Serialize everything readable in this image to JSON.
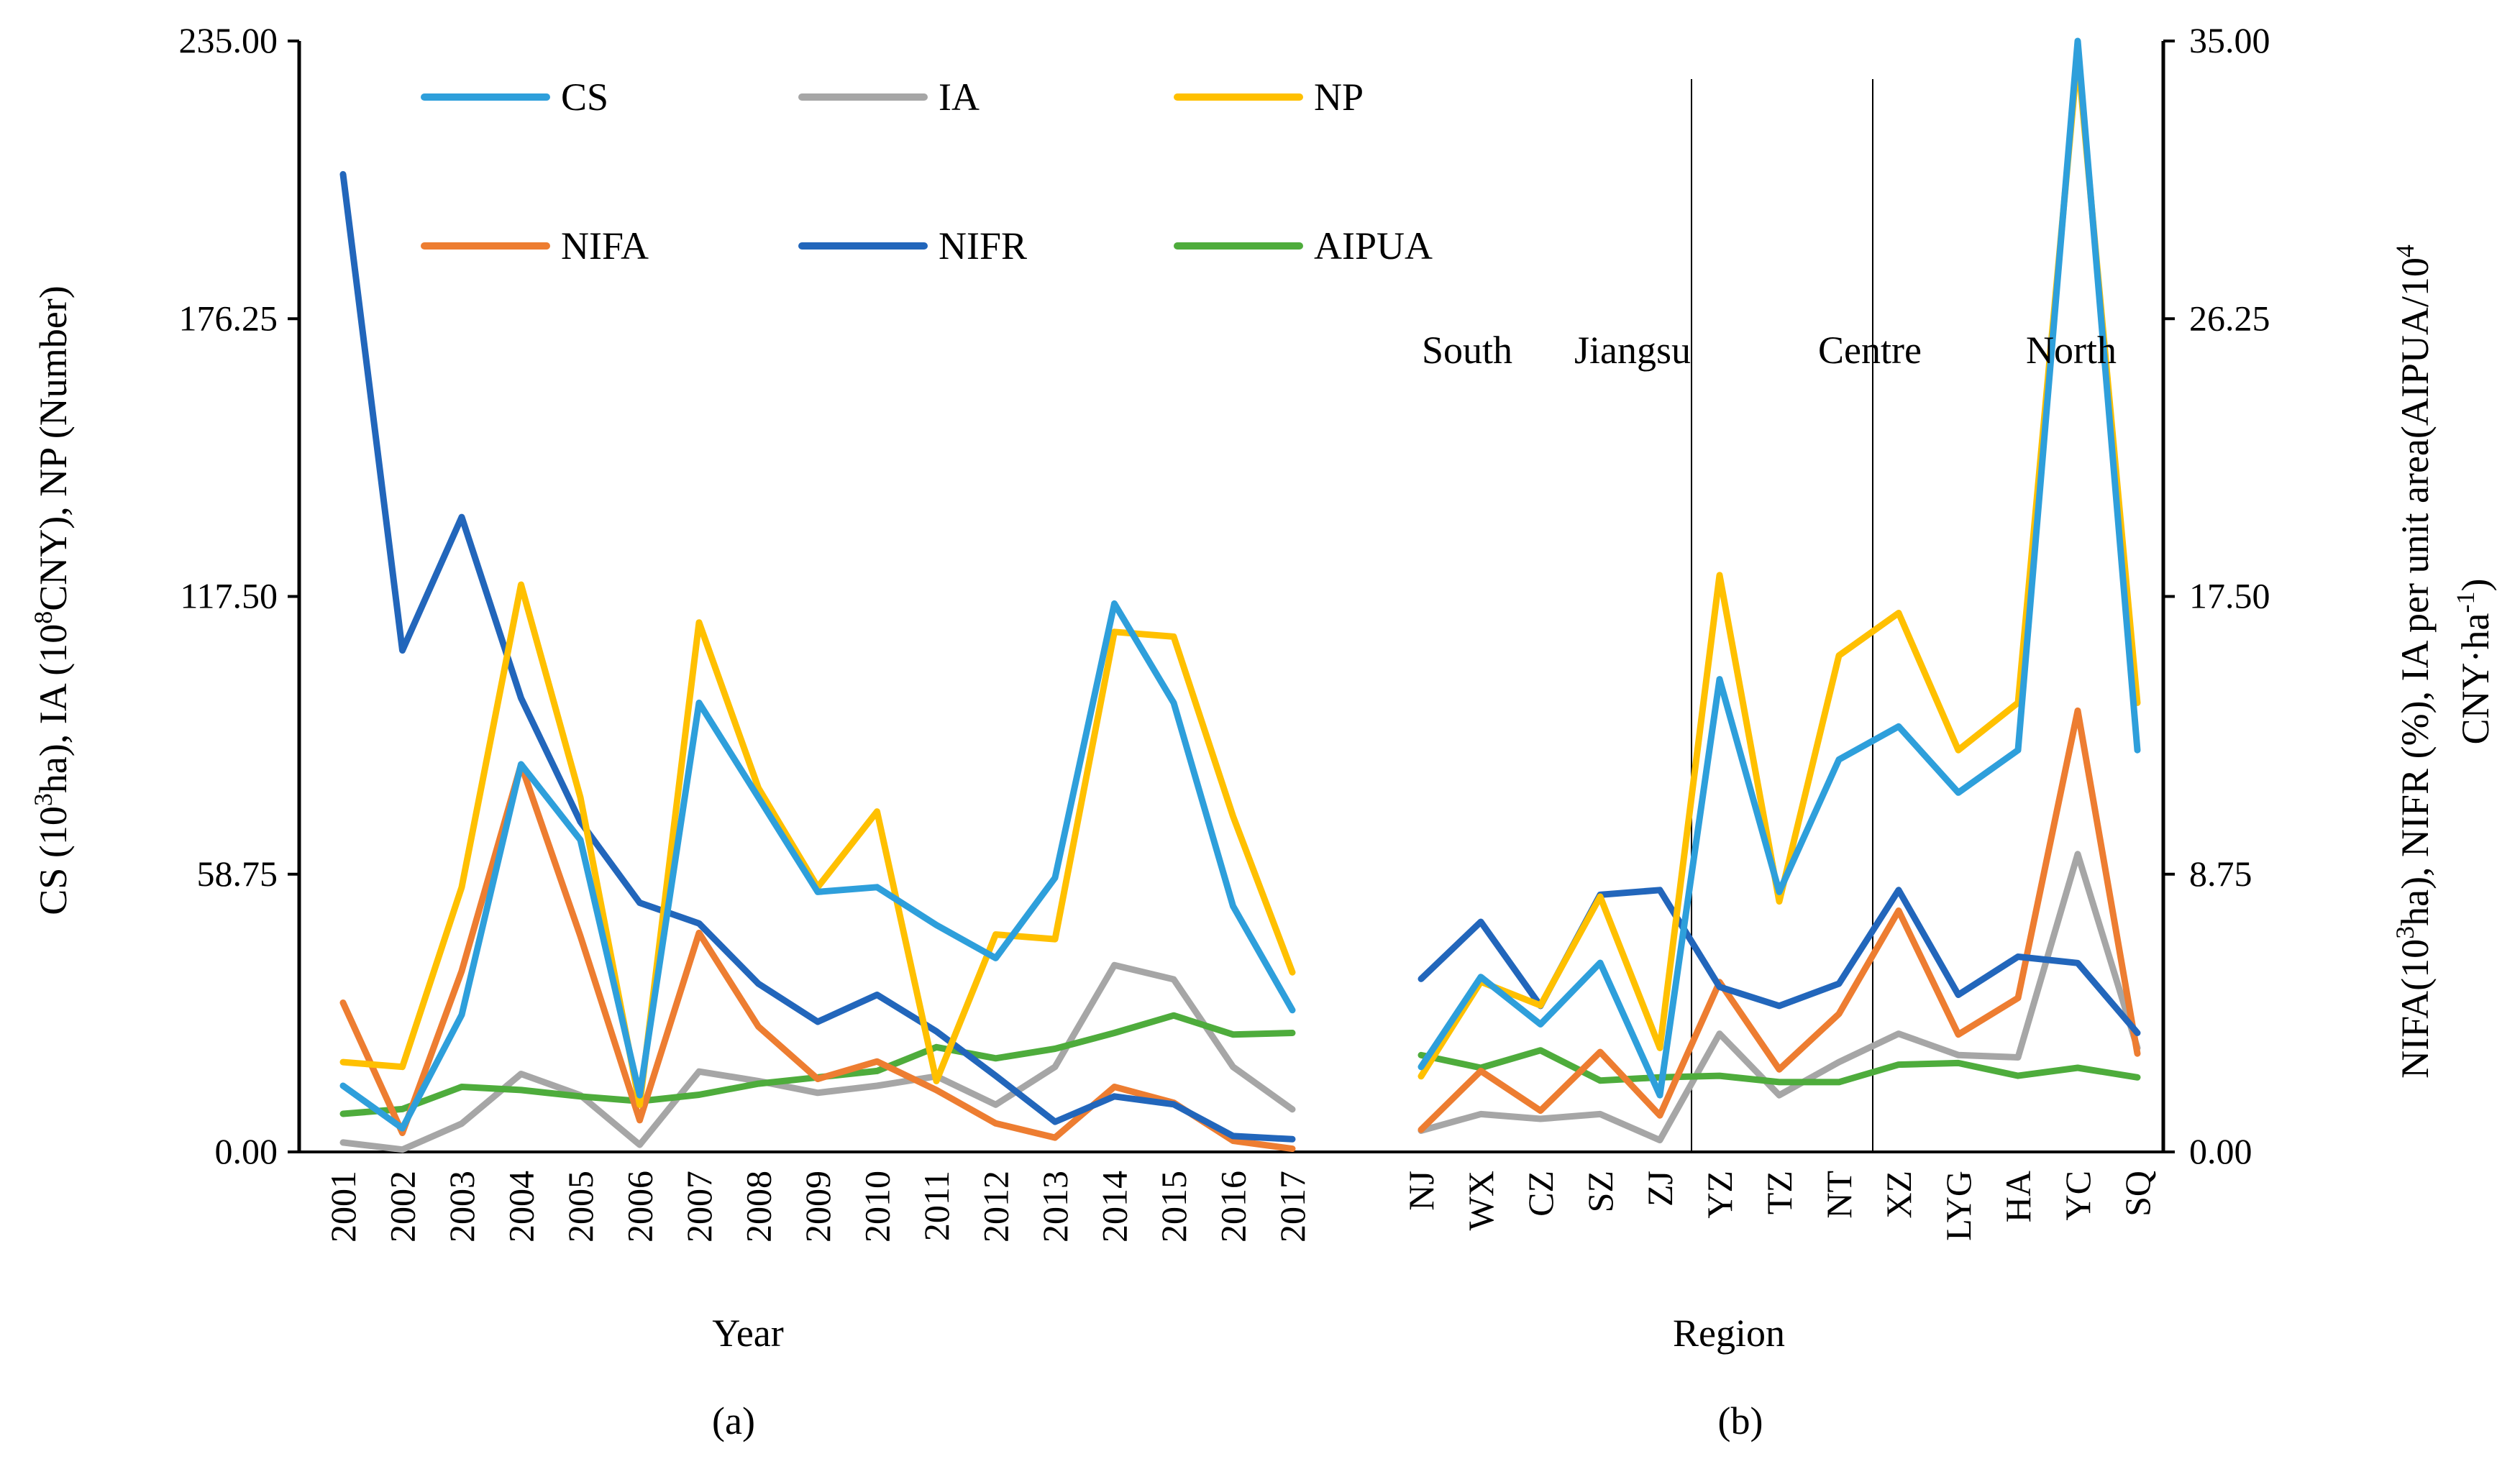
{
  "chart_data": {
    "type": "line",
    "left_axis": {
      "label_parts": [
        "CS (10",
        "3",
        "ha), IA (10",
        "8",
        "CNY), NP (Number)"
      ],
      "ticks": [
        "0.00",
        "58.75",
        "117.50",
        "176.25",
        "235.00"
      ],
      "ylim": [
        0,
        235
      ]
    },
    "right_axis": {
      "label_line1_parts": [
        "NIFA(10",
        "3",
        "ha), NIFR (%), IA per unit area(AIPUA/10",
        "4"
      ],
      "label_line2_parts": [
        "CNY·ha",
        "-1",
        ")"
      ],
      "ticks": [
        "0.00",
        "8.75",
        "17.50",
        "26.25",
        "35.00"
      ],
      "ylim": [
        0,
        35
      ]
    },
    "legend": [
      {
        "name": "CS",
        "color": "#2E9FDB"
      },
      {
        "name": "IA",
        "color": "#A6A6A6"
      },
      {
        "name": "NP",
        "color": "#FFC000"
      },
      {
        "name": "NIFA",
        "color": "#ED7D31"
      },
      {
        "name": "NIFR",
        "color": "#2266BB"
      },
      {
        "name": "AIPUA",
        "color": "#4EAC3C"
      }
    ],
    "panels": [
      {
        "id": "a",
        "panel_label": "(a)",
        "xlabel": "Year",
        "categories": [
          "2001",
          "2002",
          "2003",
          "2004",
          "2005",
          "2006",
          "2007",
          "2008",
          "2009",
          "2010",
          "2011",
          "2012",
          "2013",
          "2014",
          "2015",
          "2016",
          "2017"
        ],
        "series": [
          {
            "name": "IA",
            "axis": "left",
            "values": [
              2,
              0.5,
              6,
              16.5,
              12,
              1.5,
              17,
              15,
              12.5,
              14,
              16,
              10,
              18,
              39.5,
              36.5,
              18,
              9
            ]
          },
          {
            "name": "AIPUA",
            "axis": "right",
            "values": [
              1.2,
              1.35,
              2.05,
              1.95,
              1.75,
              1.6,
              1.8,
              2.15,
              2.35,
              2.55,
              3.3,
              2.95,
              3.25,
              3.75,
              4.3,
              3.7,
              3.75
            ]
          },
          {
            "name": "NIFA",
            "axis": "right",
            "values": [
              4.7,
              0.6,
              5.7,
              12.2,
              6.8,
              1.0,
              6.9,
              3.95,
              2.3,
              2.85,
              1.95,
              0.9,
              0.45,
              2.05,
              1.55,
              0.35,
              0.1
            ]
          },
          {
            "name": "NIFR",
            "axis": "right",
            "values": [
              30.8,
              15.8,
              20.0,
              14.3,
              10.4,
              7.85,
              7.2,
              5.3,
              4.1,
              4.95,
              3.8,
              2.4,
              0.95,
              1.75,
              1.5,
              0.5,
              0.4
            ]
          },
          {
            "name": "NP",
            "axis": "left",
            "values": [
              19,
              18,
              56,
              120,
              75,
              10,
              112,
              77,
              56,
              72,
              15,
              46,
              45,
              110,
              109,
              71,
              38
            ]
          },
          {
            "name": "CS",
            "axis": "left",
            "values": [
              14,
              5,
              29,
              82,
              66,
              12,
              95,
              75,
              55,
              56,
              48,
              41,
              58,
              116,
              95,
              52,
              30
            ]
          }
        ]
      },
      {
        "id": "b",
        "panel_label": "(b)",
        "xlabel": "Region",
        "categories": [
          "NJ",
          "WX",
          "CZ",
          "SZ",
          "ZJ",
          "YZ",
          "TZ",
          "NT",
          "XZ",
          "LYG",
          "HA",
          "YC",
          "SQ"
        ],
        "region_labels": [
          "South",
          "Jiangsu",
          "Centre",
          "North"
        ],
        "series": [
          {
            "name": "IA",
            "axis": "left",
            "values": [
              4.5,
              8,
              7,
              8,
              2.5,
              25,
              12,
              19,
              25,
              20.5,
              20,
              63,
              22
            ]
          },
          {
            "name": "AIPUA",
            "axis": "right",
            "values": [
              3.05,
              2.65,
              3.2,
              2.25,
              2.35,
              2.4,
              2.2,
              2.2,
              2.75,
              2.8,
              2.4,
              2.65,
              2.35
            ]
          },
          {
            "name": "NIFA",
            "axis": "right",
            "values": [
              0.7,
              2.55,
              1.3,
              3.15,
              1.15,
              5.35,
              2.6,
              4.35,
              7.6,
              3.7,
              4.85,
              13.9,
              3.1
            ]
          },
          {
            "name": "NIFR",
            "axis": "right",
            "values": [
              5.45,
              7.25,
              4.6,
              8.1,
              8.25,
              5.2,
              4.6,
              5.3,
              8.25,
              4.95,
              6.15,
              5.95,
              3.75
            ]
          },
          {
            "name": "NP",
            "axis": "left",
            "values": [
              16,
              36,
              31,
              54,
              22,
              122,
              53,
              105,
              114,
              85,
              95,
              232,
              95
            ]
          },
          {
            "name": "CS",
            "axis": "left",
            "values": [
              18,
              37,
              27,
              40,
              12,
              100,
              55,
              83,
              90,
              76,
              85,
              235,
              85
            ]
          }
        ]
      }
    ]
  }
}
